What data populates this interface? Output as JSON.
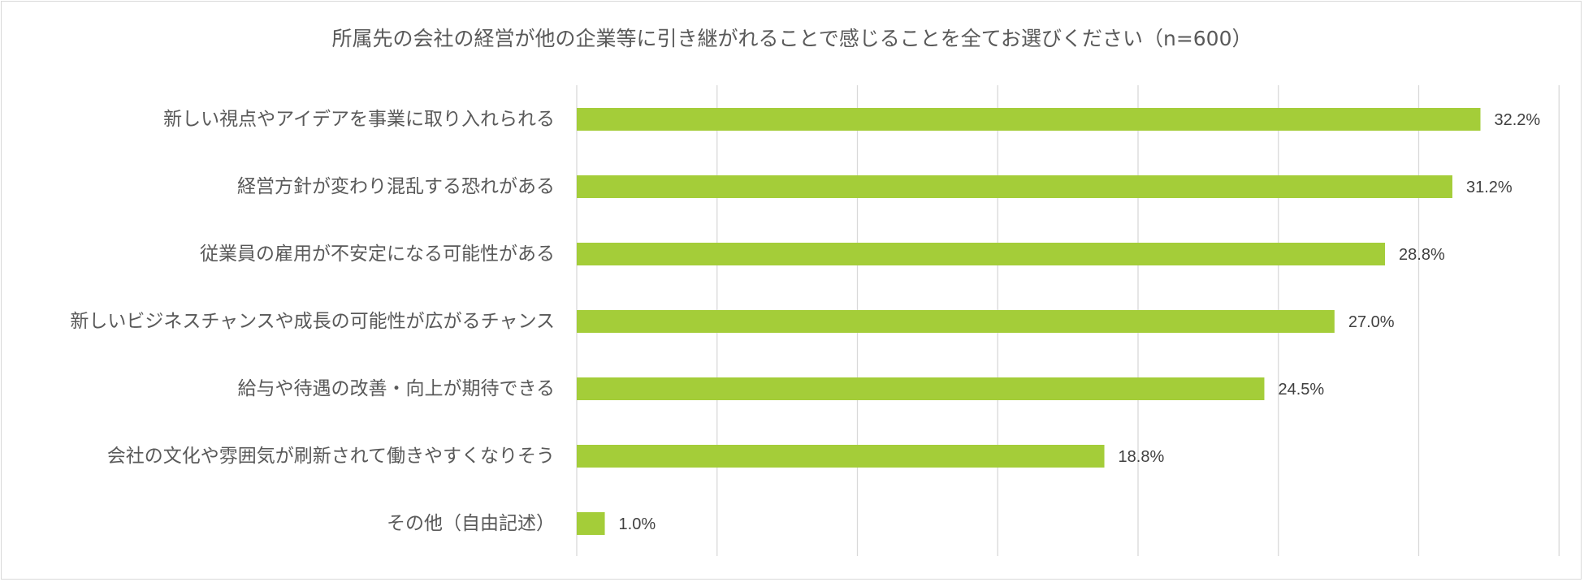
{
  "chart_data": {
    "type": "bar",
    "orientation": "horizontal",
    "title": "所属先の会社の経営が他の企業等に引き継がれることで感じることを全てお選びください（n=600）",
    "categories": [
      "新しい視点やアイデアを事業に取り入れられる",
      "経営方針が変わり混乱する恐れがある",
      "従業員の雇用が不安定になる可能性がある",
      "新しいビジネスチャンスや成長の可能性が広がるチャンス",
      "給与や待遇の改善・向上が期待できる",
      "会社の文化や雰囲気が刷新されて働きやすくなりそう",
      "その他（自由記述）"
    ],
    "values": [
      32.2,
      31.2,
      28.8,
      27.0,
      24.5,
      18.8,
      1.0
    ],
    "value_labels": [
      "32.2%",
      "31.2%",
      "28.8%",
      "27.0%",
      "24.5%",
      "18.8%",
      "1.0%"
    ],
    "xlim": [
      0,
      35
    ],
    "grid": true,
    "bar_color": "#a4cd39",
    "gridline_color": "#d9d9d9"
  }
}
